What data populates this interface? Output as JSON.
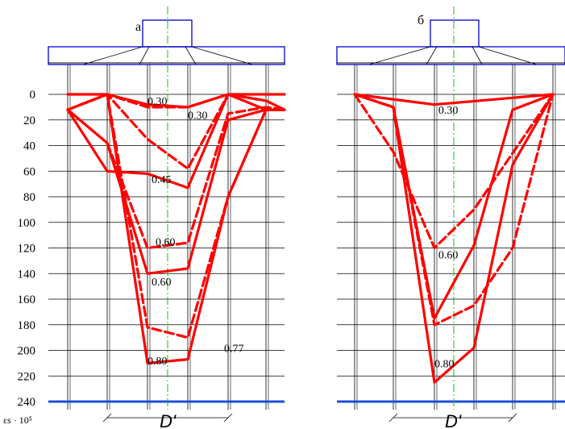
{
  "chart_data": [
    {
      "type": "line",
      "panel_label": "а",
      "ylabel": "εs · 10⁵",
      "xlabel": "D'",
      "y_ticks": [
        0,
        20,
        40,
        60,
        80,
        100,
        120,
        140,
        160,
        180,
        200,
        220,
        240
      ],
      "ylim": [
        0,
        240
      ],
      "x_domain": [
        0,
        6
      ],
      "y_inverted": true,
      "series": [
        {
          "x": [
            0,
            1,
            2,
            3,
            4,
            5,
            6
          ],
          "y": [
            0,
            0,
            8,
            10,
            0,
            0,
            0
          ],
          "style": "solid"
        },
        {
          "x": [
            0,
            1,
            2,
            3,
            4,
            5,
            6
          ],
          "y": [
            12,
            0,
            10,
            10,
            0,
            5,
            12
          ],
          "style": "dashed"
        },
        {
          "x": [
            0,
            1,
            2,
            3,
            4,
            5,
            6
          ],
          "y": [
            12,
            60,
            62,
            73,
            0,
            12,
            12
          ],
          "style": "solid"
        },
        {
          "x": [
            0,
            1,
            2,
            3,
            4,
            5,
            6
          ],
          "y": [
            12,
            0,
            35,
            58,
            0,
            5,
            12
          ],
          "style": "dashed"
        },
        {
          "x": [
            0,
            1,
            2,
            3,
            4,
            5,
            6
          ],
          "y": [
            12,
            38,
            120,
            116,
            15,
            10,
            12
          ],
          "style": "dashed"
        },
        {
          "x": [
            0,
            1,
            2,
            3,
            4,
            5,
            6
          ],
          "y": [
            12,
            38,
            140,
            136,
            20,
            12,
            12
          ],
          "style": "solid"
        },
        {
          "x": [
            0,
            1,
            2,
            3,
            4,
            5,
            6
          ],
          "y": [
            12,
            0,
            182,
            190,
            80,
            12,
            12
          ],
          "style": "dashed"
        },
        {
          "x": [
            0,
            1,
            2,
            3,
            4,
            5,
            6
          ],
          "y": [
            12,
            0,
            210,
            207,
            80,
            12,
            12
          ],
          "style": "solid"
        }
      ],
      "annotations": [
        {
          "text": "0.30",
          "x": 2.0,
          "y": 5
        },
        {
          "text": "0.30",
          "x": 3.0,
          "y": 16
        },
        {
          "text": "0.45",
          "x": 2.1,
          "y": 66
        },
        {
          "text": "0.60",
          "x": 2.2,
          "y": 115
        },
        {
          "text": "0.60",
          "x": 2.1,
          "y": 146
        },
        {
          "text": "0.77",
          "x": 3.9,
          "y": 198
        },
        {
          "text": "0.80",
          "x": 2.0,
          "y": 208
        }
      ]
    },
    {
      "type": "line",
      "panel_label": "б",
      "ylabel": "",
      "xlabel": "D'",
      "y_ticks": [
        0,
        20,
        40,
        60,
        80,
        100,
        120,
        140,
        160,
        180,
        200,
        220,
        240
      ],
      "ylim": [
        0,
        240
      ],
      "x_domain": [
        0,
        5
      ],
      "y_inverted": true,
      "series": [
        {
          "x": [
            0,
            2,
            5
          ],
          "y": [
            0,
            8,
            0
          ],
          "style": "solid"
        },
        {
          "x": [
            0,
            1,
            2,
            3,
            5
          ],
          "y": [
            0,
            45,
            120,
            90,
            0
          ],
          "style": "dashed"
        },
        {
          "x": [
            0,
            1,
            2,
            3,
            4,
            5
          ],
          "y": [
            0,
            10,
            180,
            165,
            120,
            0
          ],
          "style": "dashed"
        },
        {
          "x": [
            0,
            1,
            2,
            3,
            4,
            5
          ],
          "y": [
            0,
            10,
            175,
            118,
            12,
            0
          ],
          "style": "solid"
        },
        {
          "x": [
            0,
            1,
            2,
            3,
            4,
            5
          ],
          "y": [
            0,
            10,
            225,
            198,
            55,
            0
          ],
          "style": "solid"
        }
      ],
      "annotations": [
        {
          "text": "0.30",
          "x": 2.1,
          "y": 12
        },
        {
          "text": "0.60",
          "x": 2.1,
          "y": 125
        },
        {
          "text": "0.80",
          "x": 2.0,
          "y": 210
        }
      ]
    }
  ],
  "colors": {
    "data": "#ff0000",
    "frame": "#0000cc",
    "ground": "#1f4fd8",
    "axis_center": "#00cc00",
    "grid": "#000000"
  }
}
